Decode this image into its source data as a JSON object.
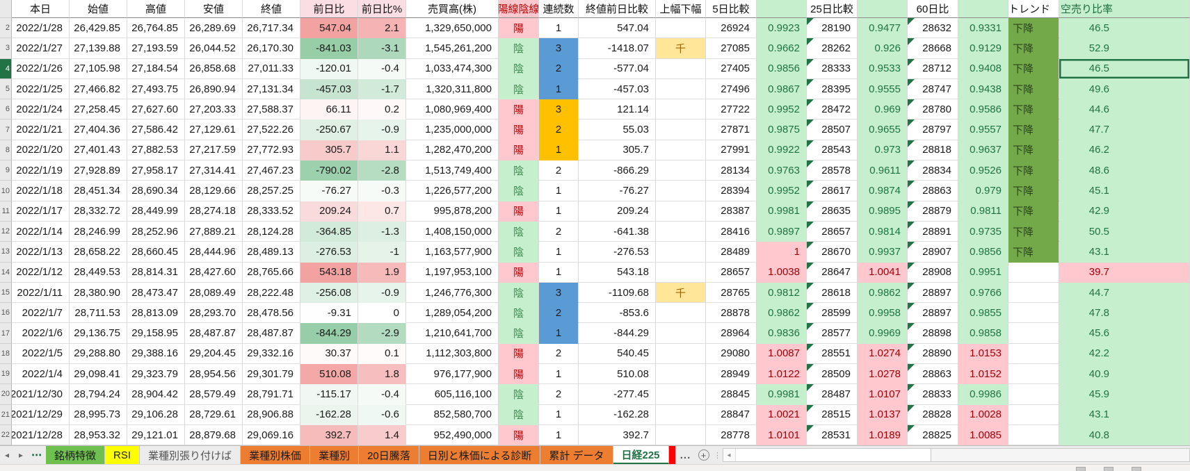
{
  "table": {
    "columns": [
      {
        "key": "n",
        "label": "",
        "hstyle": "rownum"
      },
      {
        "key": "date",
        "label": "本日"
      },
      {
        "key": "open",
        "label": "始値"
      },
      {
        "key": "high",
        "label": "高値"
      },
      {
        "key": "low",
        "label": "安値"
      },
      {
        "key": "close",
        "label": "終値"
      },
      {
        "key": "chg",
        "label": "前日比",
        "hstyle": "pink"
      },
      {
        "key": "pct",
        "label": "前日比%",
        "hstyle": "pink"
      },
      {
        "key": "vol",
        "label": "売買高(株)"
      },
      {
        "key": "candle",
        "label": "陽線陰線",
        "hstyle": "candle"
      },
      {
        "key": "streak",
        "label": "連続数"
      },
      {
        "key": "close_cmp",
        "label": "終値前日比較"
      },
      {
        "key": "flag",
        "label": "上幅下幅"
      },
      {
        "key": "d5",
        "label": "5日比較"
      },
      {
        "key": "d5r",
        "label": "",
        "hstyle": "green"
      },
      {
        "key": "d25",
        "label": "25日比較"
      },
      {
        "key": "d25r",
        "label": "",
        "hstyle": "green"
      },
      {
        "key": "d60",
        "label": "60日比"
      },
      {
        "key": "d60r",
        "label": "",
        "hstyle": "green"
      },
      {
        "key": "trend",
        "label": "トレンド"
      },
      {
        "key": "short",
        "label": "空売り比率",
        "hstyle": "greenlabel"
      }
    ],
    "rows": [
      {
        "n": 2,
        "date": "2022/1/28",
        "open": "26,429.85",
        "high": "26,764.85",
        "low": "26,289.69",
        "close": "26,717.34",
        "chg": "547.04",
        "pct": "2.1",
        "vol": "1,329,650,000",
        "candle": "陽",
        "streak": "1",
        "streak_color": "",
        "close_cmp": "547.04",
        "flag": "",
        "d5": "26924",
        "d5r": "0.9923",
        "d5s": "good",
        "d25": "28190",
        "d25r": "0.9477",
        "d25s": "good",
        "d60": "28632",
        "d60r": "0.9331",
        "d60s": "good",
        "trend": "下降",
        "short": "46.5",
        "shorts": "good"
      },
      {
        "n": 3,
        "date": "2022/1/27",
        "open": "27,139.88",
        "high": "27,193.59",
        "low": "26,044.52",
        "close": "26,170.30",
        "chg": "-841.03",
        "pct": "-3.1",
        "vol": "1,545,261,200",
        "candle": "陰",
        "streak": "3",
        "streak_color": "blue",
        "close_cmp": "-1418.07",
        "flag": "千",
        "d5": "27085",
        "d5r": "0.9662",
        "d5s": "good",
        "d25": "28262",
        "d25r": "0.926",
        "d25s": "good",
        "d60": "28668",
        "d60r": "0.9129",
        "d60s": "good",
        "trend": "下降",
        "short": "52.9",
        "shorts": "good"
      },
      {
        "n": 4,
        "date": "2022/1/26",
        "open": "27,105.98",
        "high": "27,184.54",
        "low": "26,858.68",
        "close": "27,011.33",
        "chg": "-120.01",
        "pct": "-0.4",
        "vol": "1,033,474,300",
        "candle": "陰",
        "streak": "2",
        "streak_color": "blue",
        "close_cmp": "-577.04",
        "flag": "",
        "d5": "27405",
        "d5r": "0.9856",
        "d5s": "good",
        "d25": "28333",
        "d25r": "0.9533",
        "d25s": "good",
        "d60": "28712",
        "d60r": "0.9408",
        "d60s": "good",
        "trend": "下降",
        "short": "46.5",
        "shorts": "good",
        "selected": true
      },
      {
        "n": 5,
        "date": "2022/1/25",
        "open": "27,466.82",
        "high": "27,493.75",
        "low": "26,890.94",
        "close": "27,131.34",
        "chg": "-457.03",
        "pct": "-1.7",
        "vol": "1,320,311,800",
        "candle": "陰",
        "streak": "1",
        "streak_color": "blue",
        "close_cmp": "-457.03",
        "flag": "",
        "d5": "27496",
        "d5r": "0.9867",
        "d5s": "good",
        "d25": "28395",
        "d25r": "0.9555",
        "d25s": "good",
        "d60": "28747",
        "d60r": "0.9438",
        "d60s": "good",
        "trend": "下降",
        "short": "49.6",
        "shorts": "good"
      },
      {
        "n": 6,
        "date": "2022/1/24",
        "open": "27,258.45",
        "high": "27,627.60",
        "low": "27,203.33",
        "close": "27,588.37",
        "chg": "66.11",
        "pct": "0.2",
        "vol": "1,080,969,400",
        "candle": "陽",
        "streak": "3",
        "streak_color": "orange",
        "close_cmp": "121.14",
        "flag": "",
        "d5": "27722",
        "d5r": "0.9952",
        "d5s": "good",
        "d25": "28472",
        "d25r": "0.969",
        "d25s": "good",
        "d60": "28780",
        "d60r": "0.9586",
        "d60s": "good",
        "trend": "下降",
        "short": "44.6",
        "shorts": "good"
      },
      {
        "n": 7,
        "date": "2022/1/21",
        "open": "27,404.36",
        "high": "27,586.42",
        "low": "27,129.61",
        "close": "27,522.26",
        "chg": "-250.67",
        "pct": "-0.9",
        "vol": "1,235,000,000",
        "candle": "陽",
        "streak": "2",
        "streak_color": "orange",
        "close_cmp": "55.03",
        "flag": "",
        "d5": "27871",
        "d5r": "0.9875",
        "d5s": "good",
        "d25": "28507",
        "d25r": "0.9655",
        "d25s": "good",
        "d60": "28797",
        "d60r": "0.9557",
        "d60s": "good",
        "trend": "下降",
        "short": "47.7",
        "shorts": "good"
      },
      {
        "n": 8,
        "date": "2022/1/20",
        "open": "27,401.43",
        "high": "27,882.53",
        "low": "27,217.59",
        "close": "27,772.93",
        "chg": "305.7",
        "pct": "1.1",
        "vol": "1,282,470,200",
        "candle": "陽",
        "streak": "1",
        "streak_color": "orange",
        "close_cmp": "305.7",
        "flag": "",
        "d5": "27991",
        "d5r": "0.9922",
        "d5s": "good",
        "d25": "28543",
        "d25r": "0.973",
        "d25s": "good",
        "d60": "28818",
        "d60r": "0.9637",
        "d60s": "good",
        "trend": "下降",
        "short": "46.2",
        "shorts": "good"
      },
      {
        "n": 9,
        "date": "2022/1/19",
        "open": "27,928.89",
        "high": "27,958.17",
        "low": "27,314.41",
        "close": "27,467.23",
        "chg": "-790.02",
        "pct": "-2.8",
        "vol": "1,513,749,400",
        "candle": "陰",
        "streak": "2",
        "streak_color": "",
        "close_cmp": "-866.29",
        "flag": "",
        "d5": "28134",
        "d5r": "0.9763",
        "d5s": "good",
        "d25": "28578",
        "d25r": "0.9611",
        "d25s": "good",
        "d60": "28834",
        "d60r": "0.9526",
        "d60s": "good",
        "trend": "下降",
        "short": "48.6",
        "shorts": "good"
      },
      {
        "n": 10,
        "date": "2022/1/18",
        "open": "28,451.34",
        "high": "28,690.34",
        "low": "28,129.66",
        "close": "28,257.25",
        "chg": "-76.27",
        "pct": "-0.3",
        "vol": "1,226,577,200",
        "candle": "陰",
        "streak": "1",
        "streak_color": "",
        "close_cmp": "-76.27",
        "flag": "",
        "d5": "28394",
        "d5r": "0.9952",
        "d5s": "good",
        "d25": "28617",
        "d25r": "0.9874",
        "d25s": "good",
        "d60": "28863",
        "d60r": "0.979",
        "d60s": "good",
        "trend": "下降",
        "short": "45.1",
        "shorts": "good"
      },
      {
        "n": 11,
        "date": "2022/1/17",
        "open": "28,332.72",
        "high": "28,449.99",
        "low": "28,274.18",
        "close": "28,333.52",
        "chg": "209.24",
        "pct": "0.7",
        "vol": "995,878,200",
        "candle": "陽",
        "streak": "1",
        "streak_color": "",
        "close_cmp": "209.24",
        "flag": "",
        "d5": "28387",
        "d5r": "0.9981",
        "d5s": "good",
        "d25": "28635",
        "d25r": "0.9895",
        "d25s": "good",
        "d60": "28879",
        "d60r": "0.9811",
        "d60s": "good",
        "trend": "下降",
        "short": "42.9",
        "shorts": "good"
      },
      {
        "n": 12,
        "date": "2022/1/14",
        "open": "28,246.99",
        "high": "28,252.96",
        "low": "27,889.21",
        "close": "28,124.28",
        "chg": "-364.85",
        "pct": "-1.3",
        "vol": "1,408,150,000",
        "candle": "陰",
        "streak": "2",
        "streak_color": "",
        "close_cmp": "-641.38",
        "flag": "",
        "d5": "28416",
        "d5r": "0.9897",
        "d5s": "good",
        "d25": "28657",
        "d25r": "0.9814",
        "d25s": "good",
        "d60": "28891",
        "d60r": "0.9735",
        "d60s": "good",
        "trend": "下降",
        "short": "50.5",
        "shorts": "good"
      },
      {
        "n": 13,
        "date": "2022/1/13",
        "open": "28,658.22",
        "high": "28,660.45",
        "low": "28,444.96",
        "close": "28,489.13",
        "chg": "-276.53",
        "pct": "-1",
        "vol": "1,163,577,900",
        "candle": "陰",
        "streak": "1",
        "streak_color": "",
        "close_cmp": "-276.53",
        "flag": "",
        "d5": "28489",
        "d5r": "1",
        "d5s": "bad",
        "d25": "28670",
        "d25r": "0.9937",
        "d25s": "good",
        "d60": "28907",
        "d60r": "0.9856",
        "d60s": "good",
        "trend": "下降",
        "short": "43.1",
        "shorts": "good"
      },
      {
        "n": 14,
        "date": "2022/1/12",
        "open": "28,449.53",
        "high": "28,814.31",
        "low": "28,427.60",
        "close": "28,765.66",
        "chg": "543.18",
        "pct": "1.9",
        "vol": "1,197,953,100",
        "candle": "陽",
        "streak": "1",
        "streak_color": "",
        "close_cmp": "543.18",
        "flag": "",
        "d5": "28657",
        "d5r": "1.0038",
        "d5s": "bad",
        "d25": "28647",
        "d25r": "1.0041",
        "d25s": "bad",
        "d60": "28908",
        "d60r": "0.9951",
        "d60s": "good",
        "trend": "",
        "short": "39.7",
        "shorts": "bad"
      },
      {
        "n": 15,
        "date": "2022/1/11",
        "open": "28,380.90",
        "high": "28,473.47",
        "low": "28,089.49",
        "close": "28,222.48",
        "chg": "-256.08",
        "pct": "-0.9",
        "vol": "1,246,776,300",
        "candle": "陰",
        "streak": "3",
        "streak_color": "blue",
        "close_cmp": "-1109.68",
        "flag": "千",
        "d5": "28765",
        "d5r": "0.9812",
        "d5s": "good",
        "d25": "28618",
        "d25r": "0.9862",
        "d25s": "good",
        "d60": "28897",
        "d60r": "0.9766",
        "d60s": "good",
        "trend": "",
        "short": "44.7",
        "shorts": "good"
      },
      {
        "n": 16,
        "date": "2022/1/7",
        "open": "28,711.53",
        "high": "28,813.09",
        "low": "28,293.70",
        "close": "28,478.56",
        "chg": "-9.31",
        "pct": "0",
        "vol": "1,289,054,200",
        "candle": "陰",
        "streak": "2",
        "streak_color": "blue",
        "close_cmp": "-853.6",
        "flag": "",
        "d5": "28878",
        "d5r": "0.9862",
        "d5s": "good",
        "d25": "28599",
        "d25r": "0.9958",
        "d25s": "good",
        "d60": "28897",
        "d60r": "0.9855",
        "d60s": "good",
        "trend": "",
        "short": "47.8",
        "shorts": "good"
      },
      {
        "n": 17,
        "date": "2022/1/6",
        "open": "29,136.75",
        "high": "29,158.95",
        "low": "28,487.87",
        "close": "28,487.87",
        "chg": "-844.29",
        "pct": "-2.9",
        "vol": "1,210,641,700",
        "candle": "陰",
        "streak": "1",
        "streak_color": "blue",
        "close_cmp": "-844.29",
        "flag": "",
        "d5": "28964",
        "d5r": "0.9836",
        "d5s": "good",
        "d25": "28577",
        "d25r": "0.9969",
        "d25s": "good",
        "d60": "28898",
        "d60r": "0.9858",
        "d60s": "good",
        "trend": "",
        "short": "45.6",
        "shorts": "good"
      },
      {
        "n": 18,
        "date": "2022/1/5",
        "open": "29,288.80",
        "high": "29,388.16",
        "low": "29,204.45",
        "close": "29,332.16",
        "chg": "30.37",
        "pct": "0.1",
        "vol": "1,112,303,800",
        "candle": "陽",
        "streak": "2",
        "streak_color": "",
        "close_cmp": "540.45",
        "flag": "",
        "d5": "29080",
        "d5r": "1.0087",
        "d5s": "bad",
        "d25": "28551",
        "d25r": "1.0274",
        "d25s": "bad",
        "d60": "28890",
        "d60r": "1.0153",
        "d60s": "bad",
        "trend": "",
        "short": "42.2",
        "shorts": "good"
      },
      {
        "n": 19,
        "date": "2022/1/4",
        "open": "29,098.41",
        "high": "29,323.79",
        "low": "28,954.56",
        "close": "29,301.79",
        "chg": "510.08",
        "pct": "1.8",
        "vol": "976,177,900",
        "candle": "陽",
        "streak": "1",
        "streak_color": "",
        "close_cmp": "510.08",
        "flag": "",
        "d5": "28949",
        "d5r": "1.0122",
        "d5s": "bad",
        "d25": "28509",
        "d25r": "1.0278",
        "d25s": "bad",
        "d60": "28863",
        "d60r": "1.0152",
        "d60s": "bad",
        "trend": "",
        "short": "40.9",
        "shorts": "good"
      },
      {
        "n": 20,
        "date": "2021/12/30",
        "open": "28,794.24",
        "high": "28,904.42",
        "low": "28,579.49",
        "close": "28,791.71",
        "chg": "-115.17",
        "pct": "-0.4",
        "vol": "605,116,100",
        "candle": "陰",
        "streak": "2",
        "streak_color": "",
        "close_cmp": "-277.45",
        "flag": "",
        "d5": "28845",
        "d5r": "0.9981",
        "d5s": "good",
        "d25": "28487",
        "d25r": "1.0107",
        "d25s": "bad",
        "d60": "28833",
        "d60r": "0.9986",
        "d60s": "good",
        "trend": "",
        "short": "45.9",
        "shorts": "good"
      },
      {
        "n": 21,
        "date": "2021/12/29",
        "open": "28,995.73",
        "high": "29,106.28",
        "low": "28,729.61",
        "close": "28,906.88",
        "chg": "-162.28",
        "pct": "-0.6",
        "vol": "852,580,700",
        "candle": "陰",
        "streak": "1",
        "streak_color": "",
        "close_cmp": "-162.28",
        "flag": "",
        "d5": "28847",
        "d5r": "1.0021",
        "d5s": "bad",
        "d25": "28515",
        "d25r": "1.0137",
        "d25s": "bad",
        "d60": "28828",
        "d60r": "1.0028",
        "d60s": "bad",
        "trend": "",
        "short": "43.1",
        "shorts": "good"
      },
      {
        "n": 22,
        "date": "2021/12/28",
        "open": "28,953.32",
        "high": "29,121.01",
        "low": "28,879.68",
        "close": "29,069.16",
        "chg": "392.7",
        "pct": "1.4",
        "vol": "952,490,000",
        "candle": "陽",
        "streak": "1",
        "streak_color": "",
        "close_cmp": "392.7",
        "flag": "",
        "d5": "28778",
        "d5r": "1.0101",
        "d5s": "bad",
        "d25": "28531",
        "d25r": "1.0189",
        "d25s": "bad",
        "d60": "28825",
        "d60r": "1.0085",
        "d60s": "bad",
        "trend": "",
        "short": "40.8",
        "shorts": "good"
      }
    ]
  },
  "colors": {
    "accent_green": "#217346",
    "up_base": [
      236,
      110,
      110
    ],
    "down_base": [
      150,
      205,
      167
    ],
    "good_bg": "#c6efce",
    "good_text": "#1f7244",
    "bad_bg": "#ffc7ce",
    "bad_text": "#9c0006",
    "candle_up_text": "#c00000",
    "candle_down_text": "#3d8a50",
    "streak_blue": "#5b9bd5",
    "streak_orange": "#ffc000",
    "flag_bg": "#ffe699",
    "trend_bg": "#73a948",
    "tab_red": "#ff0000"
  },
  "sheet_tabs": {
    "tabs": [
      {
        "label": "銘柄特徴",
        "bg": "#70c050"
      },
      {
        "label": "RSI",
        "bg": "#ffff00"
      },
      {
        "label": "業種別張り付けば",
        "bg": ""
      },
      {
        "label": "業種別株価",
        "bg": "#ed7d31"
      },
      {
        "label": "業種別",
        "bg": "#ed7d31"
      },
      {
        "label": "20日騰落",
        "bg": "#ed7d31"
      },
      {
        "label": "日別と株価による診断",
        "bg": "#ed7d31"
      },
      {
        "label": "累計 データ",
        "bg": "#ed7d31"
      },
      {
        "label": "日経225",
        "bg": "#ffffff",
        "active": true
      }
    ],
    "overflow_label": "..."
  },
  "icons": {
    "tab_nav_left": "◂",
    "tab_nav_right": "▸",
    "nav_ellipsis": "⋯",
    "add_sheet": "+",
    "vertical_dots": "⋮",
    "scroll_left_arrow": "◂"
  }
}
